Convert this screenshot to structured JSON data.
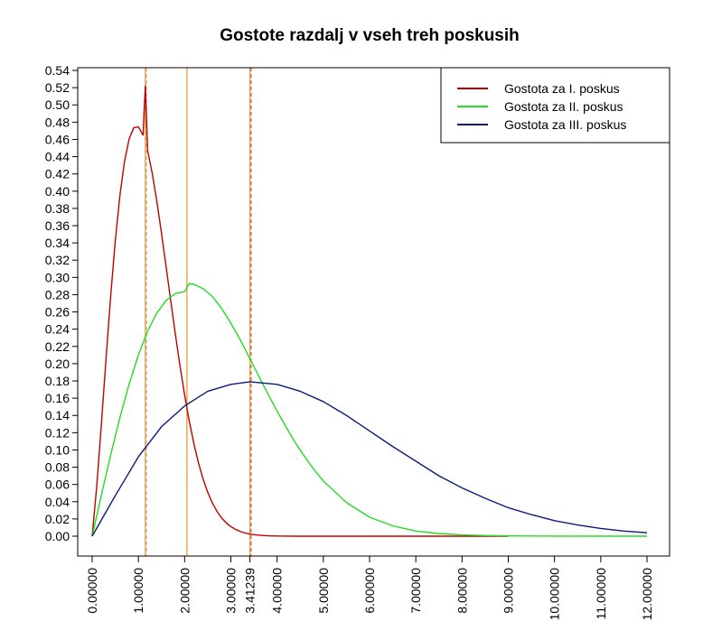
{
  "chart_data": {
    "type": "line",
    "title": "Gostote razdalj v vseh treh poskusih",
    "xlabel": "",
    "ylabel": "",
    "xlim": [
      0,
      12
    ],
    "ylim": [
      0,
      0.54
    ],
    "y_ticks": [
      "0.00",
      "0.02",
      "0.04",
      "0.06",
      "0.08",
      "0.10",
      "0.12",
      "0.14",
      "0.16",
      "0.18",
      "0.20",
      "0.22",
      "0.24",
      "0.26",
      "0.28",
      "0.30",
      "0.32",
      "0.34",
      "0.36",
      "0.38",
      "0.40",
      "0.42",
      "0.44",
      "0.46",
      "0.48",
      "0.50",
      "0.52",
      "0.54"
    ],
    "x_ticks": [
      {
        "value": 0,
        "label": "0.00000"
      },
      {
        "value": 1,
        "label": "1.00000"
      },
      {
        "value": 2,
        "label": "2.00000"
      },
      {
        "value": 3,
        "label": "3.00000"
      },
      {
        "value": 3.41239,
        "label": "3.41239"
      },
      {
        "value": 4,
        "label": "4.00000"
      },
      {
        "value": 5,
        "label": "5.00000"
      },
      {
        "value": 6,
        "label": "6.00000"
      },
      {
        "value": 7,
        "label": "7.00000"
      },
      {
        "value": 8,
        "label": "8.00000"
      },
      {
        "value": 9,
        "label": "9.00000"
      },
      {
        "value": 10,
        "label": "10.00000"
      },
      {
        "value": 11,
        "label": "11.00000"
      },
      {
        "value": 12,
        "label": "12.00000"
      }
    ],
    "grid": false,
    "legend_position": "top-right",
    "vertical_lines": [
      {
        "x": 1.15,
        "color": "#e8a33d",
        "dashed_color": "#b0b0b0"
      },
      {
        "x": 2.05,
        "color": "#e8a33d",
        "dashed_color": null
      },
      {
        "x": 3.41239,
        "color": "#e8a33d",
        "dashed_color": "#c0504d"
      }
    ],
    "series": [
      {
        "name": "Gostota za I. poskus",
        "color": "#c00000",
        "x": [
          0,
          0.1,
          0.2,
          0.3,
          0.4,
          0.5,
          0.6,
          0.7,
          0.8,
          0.9,
          1.0,
          1.1,
          1.15,
          1.2,
          1.3,
          1.4,
          1.5,
          1.6,
          1.7,
          1.8,
          1.9,
          2.0,
          2.1,
          2.2,
          2.3,
          2.4,
          2.5,
          2.6,
          2.7,
          2.8,
          2.9,
          3.0,
          3.1,
          3.2,
          3.3,
          3.4,
          3.5,
          3.6,
          3.8,
          4.0,
          4.2,
          4.4,
          4.6,
          4.8,
          5.0,
          5.5,
          6.0,
          6.5,
          7.0,
          7.5,
          8.0,
          8.5,
          9.0
        ],
        "y": [
          0.0,
          0.0585,
          0.1302,
          0.2058,
          0.2782,
          0.3424,
          0.395,
          0.4345,
          0.4606,
          0.4736,
          0.4745,
          0.465,
          0.522,
          0.4469,
          0.4204,
          0.3879,
          0.3512,
          0.3122,
          0.2725,
          0.2338,
          0.1973,
          0.1637,
          0.1335,
          0.1073,
          0.0848,
          0.0661,
          0.0508,
          0.0385,
          0.0288,
          0.0212,
          0.0154,
          0.0111,
          0.0079,
          0.0055,
          0.0038,
          0.0026,
          0.0018,
          0.0012,
          0.0005,
          0.0002,
          0.0001,
          0.0,
          0.0,
          0.0,
          0.0,
          0.0,
          0.0,
          0.0,
          0.0,
          0.0,
          0.0,
          0.0,
          0.0
        ]
      },
      {
        "name": "Gostota za II. poskus",
        "color": "#22dd22",
        "x": [
          0,
          0.2,
          0.4,
          0.6,
          0.8,
          1.0,
          1.2,
          1.4,
          1.6,
          1.8,
          2.0,
          2.1,
          2.2,
          2.4,
          2.6,
          2.8,
          3.0,
          3.2,
          3.4,
          3.6,
          3.8,
          4.0,
          4.2,
          4.4,
          4.6,
          4.8,
          5.0,
          5.5,
          6.0,
          6.5,
          7.0,
          7.5,
          8.0,
          8.5,
          9.0,
          10.0,
          11.0,
          12.0
        ],
        "y": [
          0.0,
          0.0478,
          0.0941,
          0.1374,
          0.1764,
          0.2101,
          0.2377,
          0.2588,
          0.2733,
          0.2814,
          0.2834,
          0.293,
          0.292,
          0.287,
          0.278,
          0.264,
          0.247,
          0.228,
          0.207,
          0.186,
          0.165,
          0.145,
          0.126,
          0.108,
          0.092,
          0.077,
          0.064,
          0.039,
          0.022,
          0.012,
          0.006,
          0.003,
          0.0015,
          0.0007,
          0.0003,
          0.0001,
          0.0,
          0.0
        ]
      },
      {
        "name": "Gostota za III. poskus",
        "color": "#0a1a7a",
        "x": [
          0,
          0.5,
          1.0,
          1.5,
          2.0,
          2.5,
          3.0,
          3.41239,
          4.0,
          4.5,
          5.0,
          5.5,
          6.0,
          6.5,
          7.0,
          7.5,
          8.0,
          8.5,
          9.0,
          9.5,
          10.0,
          10.5,
          11.0,
          11.5,
          12.0
        ],
        "y": [
          0.0,
          0.047,
          0.092,
          0.127,
          0.151,
          0.168,
          0.176,
          0.179,
          0.176,
          0.168,
          0.156,
          0.14,
          0.122,
          0.104,
          0.087,
          0.07,
          0.056,
          0.044,
          0.033,
          0.025,
          0.018,
          0.013,
          0.009,
          0.006,
          0.004
        ]
      }
    ]
  }
}
